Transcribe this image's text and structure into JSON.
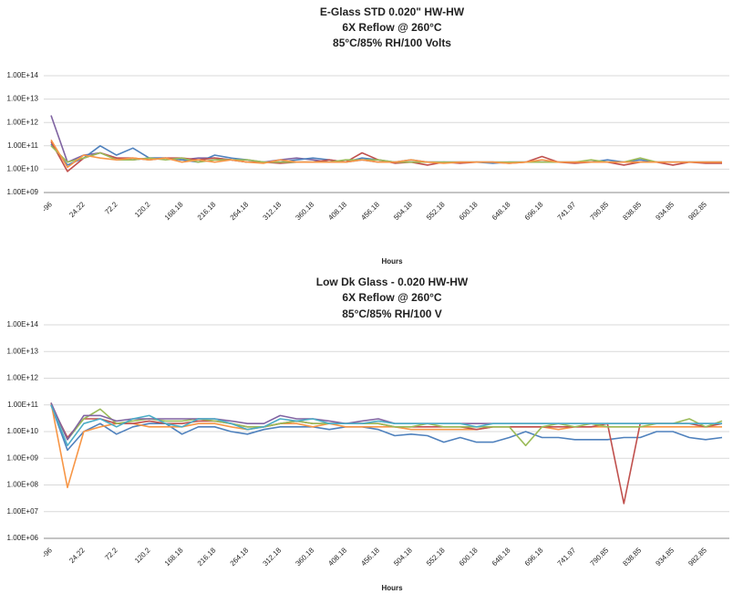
{
  "chart_data": [
    {
      "type": "line",
      "title": [
        "E-Glass  STD 0.020\" HW-HW",
        "6X Reflow @ 260°C",
        "85°C/85% RH/100 Volts"
      ],
      "x_label": "Hours",
      "log_scale": true,
      "grid": true,
      "categories": [
        "-96",
        null,
        "24.22",
        null,
        "72.2",
        null,
        "120.2",
        null,
        "168.18",
        null,
        "216.18",
        null,
        "264.18",
        null,
        "312.18",
        null,
        "360.18",
        null,
        "408.18",
        null,
        "456.18",
        null,
        "504.18",
        null,
        "552.18",
        null,
        "600.18",
        null,
        "648.18",
        null,
        "696.18",
        null,
        "741.97",
        null,
        "790.85",
        null,
        "838.85",
        null,
        "934.85",
        null,
        "982.85",
        null
      ],
      "ylim": [
        1000000000.0,
        100000000000000.0
      ],
      "yticks": [
        {
          "value": 1000000000.0,
          "label": "1.00E+09"
        },
        {
          "value": 10000000000.0,
          "label": "1.00E+10"
        },
        {
          "value": 100000000000.0,
          "label": "1.00E+11"
        },
        {
          "value": 1000000000000.0,
          "label": "1.00E+12"
        },
        {
          "value": 10000000000000.0,
          "label": "1.00E+13"
        },
        {
          "value": 100000000000000.0,
          "label": "1.00E+14"
        }
      ],
      "series": [
        {
          "color": "#8064a2",
          "values": [
            2000000000000.0,
            20000000000.0,
            40000000000.0,
            50000000000.0,
            30000000000.0,
            25000000000.0,
            30000000000.0,
            30000000000.0,
            25000000000.0,
            30000000000.0,
            30000000000.0,
            25000000000.0,
            20000000000.0,
            20000000000.0,
            25000000000.0,
            30000000000.0,
            25000000000.0,
            20000000000.0,
            20000000000.0,
            25000000000.0,
            20000000000.0,
            20000000000.0,
            20000000000.0,
            20000000000.0,
            20000000000.0,
            20000000000.0,
            20000000000.0,
            20000000000.0,
            20000000000.0,
            20000000000.0,
            20000000000.0,
            20000000000.0,
            20000000000.0,
            20000000000.0,
            20000000000.0,
            20000000000.0,
            20000000000.0,
            20000000000.0,
            20000000000.0,
            20000000000.0,
            20000000000.0,
            20000000000.0
          ]
        },
        {
          "color": "#4f81bd",
          "values": [
            120000000000.0,
            15000000000.0,
            30000000000.0,
            100000000000.0,
            40000000000.0,
            80000000000.0,
            30000000000.0,
            30000000000.0,
            25000000000.0,
            20000000000.0,
            40000000000.0,
            30000000000.0,
            25000000000.0,
            20000000000.0,
            20000000000.0,
            25000000000.0,
            30000000000.0,
            25000000000.0,
            20000000000.0,
            30000000000.0,
            25000000000.0,
            20000000000.0,
            25000000000.0,
            20000000000.0,
            20000000000.0,
            20000000000.0,
            20000000000.0,
            18000000000.0,
            20000000000.0,
            20000000000.0,
            20000000000.0,
            20000000000.0,
            20000000000.0,
            20000000000.0,
            25000000000.0,
            20000000000.0,
            25000000000.0,
            20000000000.0,
            20000000000.0,
            20000000000.0,
            20000000000.0,
            20000000000.0
          ]
        },
        {
          "color": "#c0504d",
          "values": [
            150000000000.0,
            8000000000.0,
            30000000000.0,
            50000000000.0,
            30000000000.0,
            30000000000.0,
            25000000000.0,
            30000000000.0,
            30000000000.0,
            25000000000.0,
            30000000000.0,
            25000000000.0,
            20000000000.0,
            20000000000.0,
            18000000000.0,
            20000000000.0,
            20000000000.0,
            25000000000.0,
            20000000000.0,
            50000000000.0,
            25000000000.0,
            18000000000.0,
            20000000000.0,
            15000000000.0,
            20000000000.0,
            18000000000.0,
            20000000000.0,
            20000000000.0,
            18000000000.0,
            20000000000.0,
            35000000000.0,
            20000000000.0,
            18000000000.0,
            20000000000.0,
            20000000000.0,
            15000000000.0,
            20000000000.0,
            20000000000.0,
            15000000000.0,
            20000000000.0,
            18000000000.0,
            18000000000.0
          ]
        },
        {
          "color": "#9bbb59",
          "values": [
            100000000000.0,
            20000000000.0,
            30000000000.0,
            50000000000.0,
            25000000000.0,
            25000000000.0,
            30000000000.0,
            25000000000.0,
            30000000000.0,
            20000000000.0,
            25000000000.0,
            25000000000.0,
            25000000000.0,
            20000000000.0,
            20000000000.0,
            20000000000.0,
            20000000000.0,
            20000000000.0,
            25000000000.0,
            25000000000.0,
            25000000000.0,
            20000000000.0,
            20000000000.0,
            20000000000.0,
            20000000000.0,
            20000000000.0,
            20000000000.0,
            20000000000.0,
            20000000000.0,
            20000000000.0,
            20000000000.0,
            20000000000.0,
            20000000000.0,
            25000000000.0,
            20000000000.0,
            20000000000.0,
            30000000000.0,
            20000000000.0,
            20000000000.0,
            20000000000.0,
            20000000000.0,
            20000000000.0
          ]
        },
        {
          "color": "#f79646",
          "values": [
            180000000000.0,
            12000000000.0,
            40000000000.0,
            30000000000.0,
            25000000000.0,
            30000000000.0,
            25000000000.0,
            30000000000.0,
            20000000000.0,
            25000000000.0,
            20000000000.0,
            25000000000.0,
            20000000000.0,
            18000000000.0,
            25000000000.0,
            20000000000.0,
            20000000000.0,
            20000000000.0,
            20000000000.0,
            25000000000.0,
            20000000000.0,
            20000000000.0,
            25000000000.0,
            20000000000.0,
            18000000000.0,
            20000000000.0,
            20000000000.0,
            20000000000.0,
            18000000000.0,
            20000000000.0,
            25000000000.0,
            20000000000.0,
            20000000000.0,
            20000000000.0,
            20000000000.0,
            20000000000.0,
            20000000000.0,
            20000000000.0,
            20000000000.0,
            20000000000.0,
            20000000000.0,
            20000000000.0
          ]
        }
      ]
    },
    {
      "type": "line",
      "title": [
        "Low Dk Glass - 0.020 HW-HW",
        "6X Reflow @ 260°C",
        "85°C/85% RH/100 V"
      ],
      "x_label": "Hours",
      "log_scale": true,
      "grid": true,
      "categories": [
        "-96",
        null,
        "24.22",
        null,
        "72.2",
        null,
        "120.2",
        null,
        "168.18",
        null,
        "216.18",
        null,
        "264.18",
        null,
        "312.18",
        null,
        "360.18",
        null,
        "408.18",
        null,
        "456.18",
        null,
        "504.18",
        null,
        "552.18",
        null,
        "600.18",
        null,
        "648.18",
        null,
        "696.18",
        null,
        "741.97",
        null,
        "790.85",
        null,
        "838.85",
        null,
        "934.85",
        null,
        "982.85",
        null
      ],
      "ylim": [
        1000000.0,
        100000000000000.0
      ],
      "yticks": [
        {
          "value": 1000000.0,
          "label": "1.00E+06"
        },
        {
          "value": 10000000.0,
          "label": "1.00E+07"
        },
        {
          "value": 100000000.0,
          "label": "1.00E+08"
        },
        {
          "value": 1000000000.0,
          "label": "1.00E+09"
        },
        {
          "value": 10000000000.0,
          "label": "1.00E+10"
        },
        {
          "value": 100000000000.0,
          "label": "1.00E+11"
        },
        {
          "value": 1000000000000.0,
          "label": "1.00E+12"
        },
        {
          "value": 10000000000000.0,
          "label": "1.00E+13"
        },
        {
          "value": 100000000000000.0,
          "label": "1.00E+14"
        }
      ],
      "series": [
        {
          "color": "#4f81bd",
          "values": [
            100000000000.0,
            2000000000.0,
            10000000000.0,
            20000000000.0,
            8000000000.0,
            15000000000.0,
            20000000000.0,
            20000000000.0,
            8000000000.0,
            15000000000.0,
            15000000000.0,
            10000000000.0,
            8000000000.0,
            12000000000.0,
            15000000000.0,
            15000000000.0,
            15000000000.0,
            12000000000.0,
            15000000000.0,
            15000000000.0,
            12000000000.0,
            7000000000.0,
            8000000000.0,
            7000000000.0,
            4000000000.0,
            6000000000.0,
            4000000000.0,
            4000000000.0,
            6000000000.0,
            10000000000.0,
            6000000000.0,
            6000000000.0,
            5000000000.0,
            5000000000.0,
            5000000000.0,
            6000000000.0,
            6000000000.0,
            10000000000.0,
            10000000000.0,
            6000000000.0,
            5000000000.0,
            6000000000.0
          ]
        },
        {
          "color": "#f79646",
          "values": [
            120000000000.0,
            80000000.0,
            10000000000.0,
            15000000000.0,
            20000000000.0,
            20000000000.0,
            15000000000.0,
            15000000000.0,
            15000000000.0,
            20000000000.0,
            20000000000.0,
            15000000000.0,
            12000000000.0,
            15000000000.0,
            20000000000.0,
            20000000000.0,
            15000000000.0,
            20000000000.0,
            15000000000.0,
            15000000000.0,
            15000000000.0,
            15000000000.0,
            12000000000.0,
            12000000000.0,
            12000000000.0,
            12000000000.0,
            12000000000.0,
            15000000000.0,
            15000000000.0,
            15000000000.0,
            15000000000.0,
            12000000000.0,
            15000000000.0,
            15000000000.0,
            15000000000.0,
            15000000000.0,
            15000000000.0,
            15000000000.0,
            15000000000.0,
            15000000000.0,
            15000000000.0,
            15000000000.0
          ]
        },
        {
          "color": "#c0504d",
          "values": [
            100000000000.0,
            6000000000.0,
            30000000000.0,
            30000000000.0,
            20000000000.0,
            20000000000.0,
            25000000000.0,
            20000000000.0,
            20000000000.0,
            25000000000.0,
            25000000000.0,
            20000000000.0,
            15000000000.0,
            15000000000.0,
            20000000000.0,
            25000000000.0,
            20000000000.0,
            20000000000.0,
            20000000000.0,
            20000000000.0,
            20000000000.0,
            15000000000.0,
            15000000000.0,
            15000000000.0,
            15000000000.0,
            15000000000.0,
            12000000000.0,
            15000000000.0,
            15000000000.0,
            15000000000.0,
            15000000000.0,
            15000000000.0,
            15000000000.0,
            15000000000.0,
            20000000000.0,
            20000000.0,
            20000000000.0,
            20000000000.0,
            20000000000.0,
            20000000000.0,
            15000000000.0,
            20000000000.0
          ]
        },
        {
          "color": "#9bbb59",
          "values": [
            100000000000.0,
            5000000000.0,
            30000000000.0,
            70000000000.0,
            20000000000.0,
            25000000000.0,
            30000000000.0,
            25000000000.0,
            25000000000.0,
            30000000000.0,
            25000000000.0,
            20000000000.0,
            15000000000.0,
            15000000000.0,
            20000000000.0,
            25000000000.0,
            20000000000.0,
            20000000000.0,
            20000000000.0,
            20000000000.0,
            20000000000.0,
            15000000000.0,
            15000000000.0,
            20000000000.0,
            15000000000.0,
            15000000000.0,
            15000000000.0,
            15000000000.0,
            15000000000.0,
            3000000000.0,
            15000000000.0,
            20000000000.0,
            15000000000.0,
            20000000000.0,
            15000000000.0,
            15000000000.0,
            15000000000.0,
            20000000000.0,
            20000000000.0,
            30000000000.0,
            15000000000.0,
            25000000000.0
          ]
        },
        {
          "color": "#8064a2",
          "values": [
            120000000000.0,
            5000000000.0,
            40000000000.0,
            40000000000.0,
            25000000000.0,
            30000000000.0,
            30000000000.0,
            30000000000.0,
            30000000000.0,
            30000000000.0,
            30000000000.0,
            25000000000.0,
            20000000000.0,
            20000000000.0,
            40000000000.0,
            30000000000.0,
            30000000000.0,
            25000000000.0,
            20000000000.0,
            25000000000.0,
            30000000000.0,
            20000000000.0,
            20000000000.0,
            20000000000.0,
            20000000000.0,
            20000000000.0,
            20000000000.0,
            20000000000.0,
            20000000000.0,
            20000000000.0,
            20000000000.0,
            20000000000.0,
            20000000000.0,
            20000000000.0,
            20000000000.0,
            20000000000.0,
            20000000000.0,
            20000000000.0,
            20000000000.0,
            20000000000.0,
            20000000000.0,
            20000000000.0
          ]
        },
        {
          "color": "#4bacc6",
          "values": [
            100000000000.0,
            3000000000.0,
            20000000000.0,
            30000000000.0,
            15000000000.0,
            30000000000.0,
            40000000000.0,
            20000000000.0,
            15000000000.0,
            30000000000.0,
            30000000000.0,
            20000000000.0,
            12000000000.0,
            15000000000.0,
            30000000000.0,
            25000000000.0,
            30000000000.0,
            20000000000.0,
            20000000000.0,
            20000000000.0,
            25000000000.0,
            20000000000.0,
            20000000000.0,
            20000000000.0,
            20000000000.0,
            20000000000.0,
            15000000000.0,
            20000000000.0,
            20000000000.0,
            20000000000.0,
            20000000000.0,
            20000000000.0,
            20000000000.0,
            20000000000.0,
            20000000000.0,
            20000000000.0,
            20000000000.0,
            20000000000.0,
            20000000000.0,
            20000000000.0,
            20000000000.0,
            20000000000.0
          ]
        }
      ]
    }
  ]
}
